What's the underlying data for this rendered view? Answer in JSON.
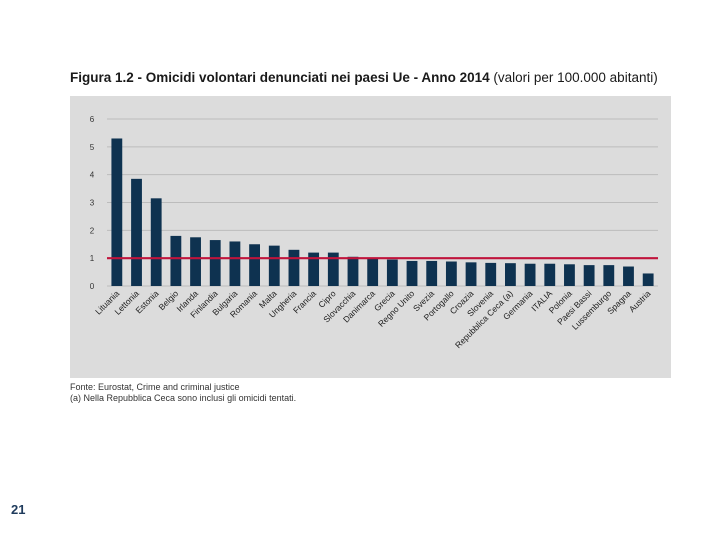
{
  "figure": {
    "label": "Figura 1.2 - ",
    "title_bold": "Omicidi volontari denunciati nei paesi Ue - Anno 2014",
    "title_regular": " (valori per 100.000 abitanti)",
    "source": "Fonte: Eurostat, Crime and criminal justice",
    "note": "(a) Nella Repubblica Ceca sono inclusi gli omicidi tentati."
  },
  "page_number": "21",
  "colors": {
    "bar": "#0e3250",
    "reference_line": "#c0143c",
    "panel": "#dcdcdc",
    "grid": "#bcbcbc"
  },
  "chart_data": {
    "type": "bar",
    "title": "Omicidi volontari denunciati nei paesi Ue - Anno 2014 (valori per 100.000 abitanti)",
    "xlabel": "",
    "ylabel": "",
    "ylim": [
      0,
      6
    ],
    "yticks": [
      "0",
      "1",
      "2",
      "3",
      "4",
      "5",
      "6"
    ],
    "grid": true,
    "categories": [
      "Lituania",
      "Lettonia",
      "Estonia",
      "Belgio",
      "Irlanda",
      "Finlandia",
      "Bulgaria",
      "Romania",
      "Malta",
      "Ungheria",
      "Francia",
      "Cipro",
      "Slovacchia",
      "Danimarca",
      "Grecia",
      "Regno Unito",
      "Svezia",
      "Portogallo",
      "Croazia",
      "Slovenia",
      "Repubblica Ceca (a)",
      "Germania",
      "ITALIA",
      "Polonia",
      "Paesi Bassi",
      "Lussemburgo",
      "Spagna",
      "Austria"
    ],
    "values": [
      5.3,
      3.85,
      3.15,
      1.8,
      1.75,
      1.65,
      1.6,
      1.5,
      1.45,
      1.3,
      1.2,
      1.2,
      1.05,
      1.0,
      0.95,
      0.9,
      0.9,
      0.88,
      0.85,
      0.83,
      0.82,
      0.8,
      0.8,
      0.78,
      0.75,
      0.75,
      0.7,
      0.45
    ],
    "reference_line": 1.0
  }
}
